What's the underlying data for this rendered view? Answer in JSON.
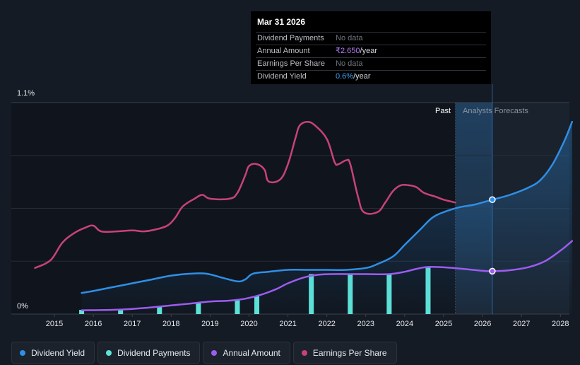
{
  "tooltip": {
    "date": "Mar 31 2026",
    "rows": [
      {
        "label": "Dividend Payments",
        "value": "No data"
      },
      {
        "label": "Annual Amount",
        "value": "₹2.650",
        "unit": "/year"
      },
      {
        "label": "Earnings Per Share",
        "value": "No data"
      },
      {
        "label": "Dividend Yield",
        "value": "0.6%",
        "unit": "/year"
      }
    ]
  },
  "legend": [
    {
      "label": "Dividend Yield",
      "color": "#2f8fe6"
    },
    {
      "label": "Dividend Payments",
      "color": "#5ee3d6"
    },
    {
      "label": "Annual Amount",
      "color": "#9d5cf0"
    },
    {
      "label": "Earnings Per Share",
      "color": "#c8427a"
    }
  ],
  "chart_data": {
    "type": "line",
    "y_top_label": "1.1%",
    "y_bottom_label": "0%",
    "ylim": [
      0,
      1.1
    ],
    "xlim": [
      2014.5,
      2028.3
    ],
    "x_ticks": [
      "2015",
      "2016",
      "2017",
      "2018",
      "2019",
      "2020",
      "2021",
      "2022",
      "2023",
      "2024",
      "2025",
      "2026",
      "2027",
      "2028"
    ],
    "past_label": "Past",
    "forecast_label": "Analysts Forecasts",
    "forecast_start": 2025.3,
    "cursor_x": 2026.25,
    "series": [
      {
        "name": "Dividend Yield",
        "color": "#2f8fe6",
        "points": [
          [
            2015.7,
            0.11
          ],
          [
            2016.0,
            0.12
          ],
          [
            2016.5,
            0.14
          ],
          [
            2017.0,
            0.16
          ],
          [
            2017.5,
            0.18
          ],
          [
            2018.0,
            0.2
          ],
          [
            2018.5,
            0.21
          ],
          [
            2018.9,
            0.21
          ],
          [
            2019.3,
            0.19
          ],
          [
            2019.7,
            0.17
          ],
          [
            2019.9,
            0.18
          ],
          [
            2020.1,
            0.21
          ],
          [
            2020.5,
            0.22
          ],
          [
            2021.0,
            0.23
          ],
          [
            2021.5,
            0.23
          ],
          [
            2022.0,
            0.23
          ],
          [
            2022.5,
            0.23
          ],
          [
            2023.0,
            0.24
          ],
          [
            2023.3,
            0.26
          ],
          [
            2023.7,
            0.3
          ],
          [
            2024.0,
            0.36
          ],
          [
            2024.4,
            0.44
          ],
          [
            2024.7,
            0.5
          ],
          [
            2025.0,
            0.53
          ],
          [
            2025.4,
            0.555
          ],
          [
            2025.8,
            0.57
          ],
          [
            2026.25,
            0.595
          ],
          [
            2026.7,
            0.62
          ],
          [
            2027.2,
            0.66
          ],
          [
            2027.5,
            0.7
          ],
          [
            2027.8,
            0.78
          ],
          [
            2028.1,
            0.9
          ],
          [
            2028.3,
            1.0
          ]
        ]
      },
      {
        "name": "Annual Amount",
        "color": "#9d5cf0",
        "points": [
          [
            2015.7,
            0.02
          ],
          [
            2016.5,
            0.022
          ],
          [
            2017.0,
            0.027
          ],
          [
            2017.5,
            0.035
          ],
          [
            2018.0,
            0.045
          ],
          [
            2018.5,
            0.055
          ],
          [
            2019.0,
            0.065
          ],
          [
            2019.5,
            0.07
          ],
          [
            2019.9,
            0.08
          ],
          [
            2020.3,
            0.1
          ],
          [
            2020.7,
            0.13
          ],
          [
            2021.0,
            0.16
          ],
          [
            2021.4,
            0.19
          ],
          [
            2021.8,
            0.205
          ],
          [
            2022.2,
            0.208
          ],
          [
            2022.6,
            0.208
          ],
          [
            2023.0,
            0.208
          ],
          [
            2023.6,
            0.208
          ],
          [
            2024.0,
            0.22
          ],
          [
            2024.3,
            0.235
          ],
          [
            2024.6,
            0.245
          ],
          [
            2025.0,
            0.243
          ],
          [
            2025.5,
            0.235
          ],
          [
            2026.0,
            0.225
          ],
          [
            2026.25,
            0.223
          ],
          [
            2026.7,
            0.228
          ],
          [
            2027.2,
            0.245
          ],
          [
            2027.6,
            0.275
          ],
          [
            2028.0,
            0.33
          ],
          [
            2028.3,
            0.38
          ]
        ]
      },
      {
        "name": "Earnings Per Share",
        "color": "#c8427a",
        "points": [
          [
            2014.5,
            0.24
          ],
          [
            2014.9,
            0.28
          ],
          [
            2015.2,
            0.37
          ],
          [
            2015.5,
            0.42
          ],
          [
            2015.8,
            0.45
          ],
          [
            2016.0,
            0.46
          ],
          [
            2016.2,
            0.43
          ],
          [
            2016.6,
            0.43
          ],
          [
            2017.0,
            0.435
          ],
          [
            2017.3,
            0.43
          ],
          [
            2017.6,
            0.44
          ],
          [
            2017.9,
            0.46
          ],
          [
            2018.1,
            0.5
          ],
          [
            2018.3,
            0.56
          ],
          [
            2018.6,
            0.6
          ],
          [
            2018.8,
            0.62
          ],
          [
            2019.0,
            0.6
          ],
          [
            2019.5,
            0.6
          ],
          [
            2019.7,
            0.63
          ],
          [
            2019.9,
            0.72
          ],
          [
            2020.0,
            0.77
          ],
          [
            2020.2,
            0.78
          ],
          [
            2020.4,
            0.75
          ],
          [
            2020.5,
            0.69
          ],
          [
            2020.8,
            0.7
          ],
          [
            2021.0,
            0.78
          ],
          [
            2021.2,
            0.92
          ],
          [
            2021.3,
            0.98
          ],
          [
            2021.5,
            1.0
          ],
          [
            2021.7,
            0.98
          ],
          [
            2022.0,
            0.91
          ],
          [
            2022.2,
            0.79
          ],
          [
            2022.3,
            0.78
          ],
          [
            2022.5,
            0.8
          ],
          [
            2022.6,
            0.78
          ],
          [
            2022.8,
            0.61
          ],
          [
            2022.95,
            0.53
          ],
          [
            2023.3,
            0.53
          ],
          [
            2023.5,
            0.58
          ],
          [
            2023.7,
            0.64
          ],
          [
            2023.9,
            0.67
          ],
          [
            2024.1,
            0.67
          ],
          [
            2024.3,
            0.66
          ],
          [
            2024.5,
            0.63
          ],
          [
            2024.8,
            0.61
          ],
          [
            2025.0,
            0.595
          ],
          [
            2025.3,
            0.58
          ]
        ]
      }
    ],
    "bars": {
      "name": "Dividend Payments",
      "color": "#5ee3d6",
      "points": [
        [
          2015.7,
          0.022
        ],
        [
          2016.7,
          0.022
        ],
        [
          2017.7,
          0.04
        ],
        [
          2018.7,
          0.062
        ],
        [
          2019.7,
          0.072
        ],
        [
          2020.2,
          0.095
        ],
        [
          2021.6,
          0.208
        ],
        [
          2022.6,
          0.208
        ],
        [
          2023.6,
          0.208
        ],
        [
          2024.6,
          0.245
        ]
      ]
    }
  }
}
